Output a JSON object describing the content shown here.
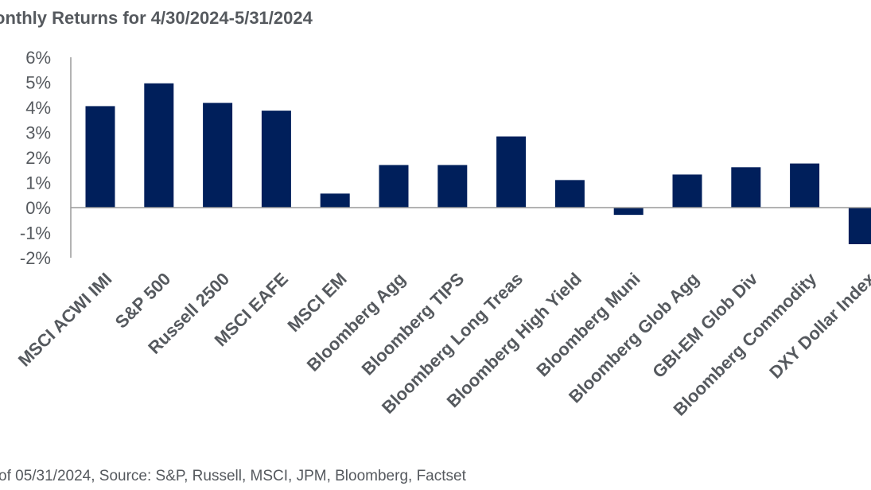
{
  "title": "onthly Returns for 4/30/2024-5/31/2024",
  "footnote": "of 05/31/2024, Source: S&P, Russell, MSCI, JPM, Bloomberg, Factset",
  "colors": {
    "bar": "#001f5b",
    "axis": "#9a9a9a",
    "text": "#55595e"
  },
  "chart_data": {
    "type": "bar",
    "title": "onthly Returns for 4/30/2024-5/31/2024",
    "xlabel": "",
    "ylabel": "",
    "ylim": [
      -2,
      6
    ],
    "yticks": [
      "6%",
      "5%",
      "4%",
      "3%",
      "2%",
      "1%",
      "0%",
      "-1%",
      "-2%"
    ],
    "grid": false,
    "legend": "none",
    "categories": [
      "MSCI ACWI IMI",
      "S&P 500",
      "Russell 2500",
      "MSCI EAFE",
      "MSCI EM",
      "Bloomberg Agg",
      "Bloomberg TIPS",
      "Bloomberg Long Treas",
      "Bloomberg High Yield",
      "Bloomberg Muni",
      "Bloomberg Glob Agg",
      "GBI-EM Glob Div",
      "Bloomberg Commodity",
      "DXY Dollar Index"
    ],
    "values": [
      4.05,
      4.96,
      4.18,
      3.87,
      0.56,
      1.7,
      1.7,
      2.84,
      1.1,
      -0.29,
      1.32,
      1.61,
      1.76,
      -1.46
    ]
  }
}
